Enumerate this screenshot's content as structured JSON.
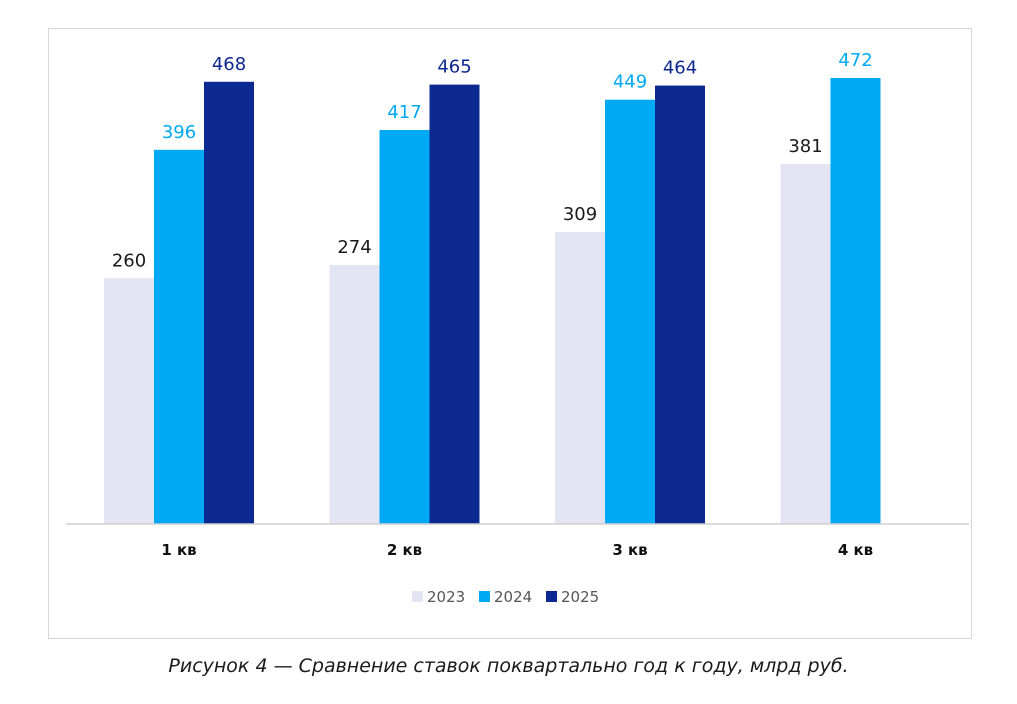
{
  "chart_data": {
    "type": "bar",
    "categories": [
      "1 кв",
      "2 кв",
      "3 кв",
      "4 кв"
    ],
    "series": [
      {
        "name": "2023",
        "values": [
          260,
          274,
          309,
          381
        ],
        "color": "#e3e5f3",
        "label_color": "#1a1a1a"
      },
      {
        "name": "2024",
        "values": [
          396,
          417,
          449,
          472
        ],
        "color": "#00a9f4",
        "label_color": "#00a9f4"
      },
      {
        "name": "2025",
        "values": [
          468,
          465,
          464,
          null
        ],
        "color": "#0c2891",
        "label_color": "#0c2891"
      }
    ],
    "ylim": [
      0,
      472
    ],
    "grid": false,
    "legend_position": "bottom"
  },
  "caption": "Рисунок 4 — Сравнение ставок поквартально год к году, млрд руб."
}
